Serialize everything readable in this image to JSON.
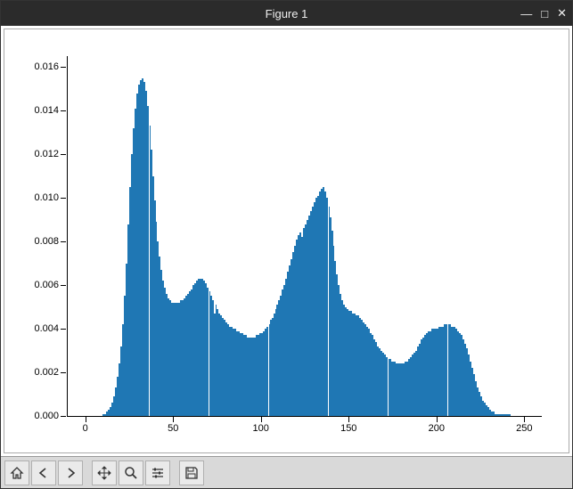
{
  "window": {
    "title": "Figure 1",
    "controls": {
      "min": "—",
      "max": "□",
      "close": "✕"
    }
  },
  "histogram": {
    "type": "histogram",
    "bar_color": "#1f77b4",
    "background_color": "#ffffff",
    "xlim": [
      -10,
      260
    ],
    "ylim": [
      0,
      0.0165
    ],
    "xticks": [
      0,
      50,
      100,
      150,
      200,
      250
    ],
    "yticks": [
      0,
      0.002,
      0.004,
      0.006,
      0.008,
      0.01,
      0.012,
      0.014,
      0.016
    ],
    "ytick_labels": [
      "0.000",
      "0.002",
      "0.004",
      "0.006",
      "0.008",
      "0.010",
      "0.012",
      "0.014",
      "0.016"
    ],
    "bin_width": 1,
    "white_gaps_at_x": [
      36,
      70,
      104,
      138,
      172,
      206
    ],
    "values": [
      0,
      0,
      0,
      0,
      0,
      0,
      0,
      0,
      0,
      0,
      0.0001,
      0.0001,
      0.0002,
      0.0003,
      0.0004,
      0.0006,
      0.0009,
      0.0013,
      0.0018,
      0.0024,
      0.0032,
      0.0042,
      0.0055,
      0.007,
      0.0088,
      0.0105,
      0.012,
      0.0132,
      0.0141,
      0.0148,
      0.0152,
      0.0154,
      0.0155,
      0.0153,
      0.0149,
      0.0142,
      0.0133,
      0.0122,
      0.011,
      0.0099,
      0.0089,
      0.008,
      0.0073,
      0.0067,
      0.0062,
      0.0059,
      0.0056,
      0.0054,
      0.0053,
      0.0052,
      0.0052,
      0.0052,
      0.0052,
      0.0052,
      0.0053,
      0.0053,
      0.0054,
      0.0055,
      0.0056,
      0.0057,
      0.0058,
      0.006,
      0.0061,
      0.0062,
      0.0063,
      0.0063,
      0.0063,
      0.0062,
      0.0061,
      0.0059,
      0.0057,
      0.0055,
      0.0053,
      0.0047,
      0.0051,
      0.0049,
      0.0047,
      0.0046,
      0.0045,
      0.0044,
      0.0043,
      0.0042,
      0.0041,
      0.0041,
      0.004,
      0.004,
      0.0039,
      0.0039,
      0.0038,
      0.0038,
      0.0037,
      0.0037,
      0.0036,
      0.0036,
      0.0036,
      0.0036,
      0.0036,
      0.0037,
      0.0037,
      0.0038,
      0.0038,
      0.0039,
      0.004,
      0.0041,
      0.0042,
      0.0044,
      0.0045,
      0.0047,
      0.0049,
      0.0051,
      0.0053,
      0.0055,
      0.0058,
      0.006,
      0.0063,
      0.0066,
      0.0069,
      0.0072,
      0.0075,
      0.0078,
      0.0081,
      0.0083,
      0.0084,
      0.0082,
      0.0086,
      0.0088,
      0.009,
      0.0092,
      0.0094,
      0.0096,
      0.0098,
      0.01,
      0.0101,
      0.0103,
      0.0104,
      0.0105,
      0.0103,
      0.01,
      0.0096,
      0.0091,
      0.0085,
      0.0078,
      0.0071,
      0.0065,
      0.006,
      0.0056,
      0.0053,
      0.0051,
      0.005,
      0.0049,
      0.0048,
      0.0048,
      0.0047,
      0.0047,
      0.0046,
      0.0046,
      0.0045,
      0.0044,
      0.0043,
      0.0042,
      0.0041,
      0.004,
      0.0038,
      0.0037,
      0.0035,
      0.0034,
      0.0032,
      0.0031,
      0.003,
      0.0029,
      0.0028,
      0.0027,
      0.0026,
      0.0026,
      0.0025,
      0.0025,
      0.0025,
      0.0024,
      0.0024,
      0.0024,
      0.0024,
      0.0024,
      0.0025,
      0.0025,
      0.0026,
      0.0027,
      0.0028,
      0.0029,
      0.003,
      0.0032,
      0.0033,
      0.0035,
      0.0036,
      0.0037,
      0.0038,
      0.0039,
      0.0039,
      0.004,
      0.004,
      0.004,
      0.004,
      0.0041,
      0.0041,
      0.0041,
      0.0042,
      0.0042,
      0.0042,
      0.0042,
      0.0041,
      0.0041,
      0.0041,
      0.004,
      0.0039,
      0.0038,
      0.0037,
      0.0035,
      0.0033,
      0.0031,
      0.0028,
      0.0025,
      0.0022,
      0.0019,
      0.0016,
      0.0013,
      0.0011,
      0.0009,
      0.0007,
      0.0006,
      0.0005,
      0.0004,
      0.0003,
      0.0002,
      0.0002,
      0.0001,
      0.0001,
      0.0001,
      0.0001,
      0.0001,
      0.0001,
      0.0001,
      0.0001,
      0.0001,
      0,
      0,
      0,
      0,
      0,
      0,
      0,
      0,
      0,
      0,
      0,
      0,
      0,
      0
    ]
  },
  "toolbar": {
    "items": [
      "home",
      "back",
      "forward",
      "pan",
      "zoom",
      "configure",
      "save"
    ]
  }
}
